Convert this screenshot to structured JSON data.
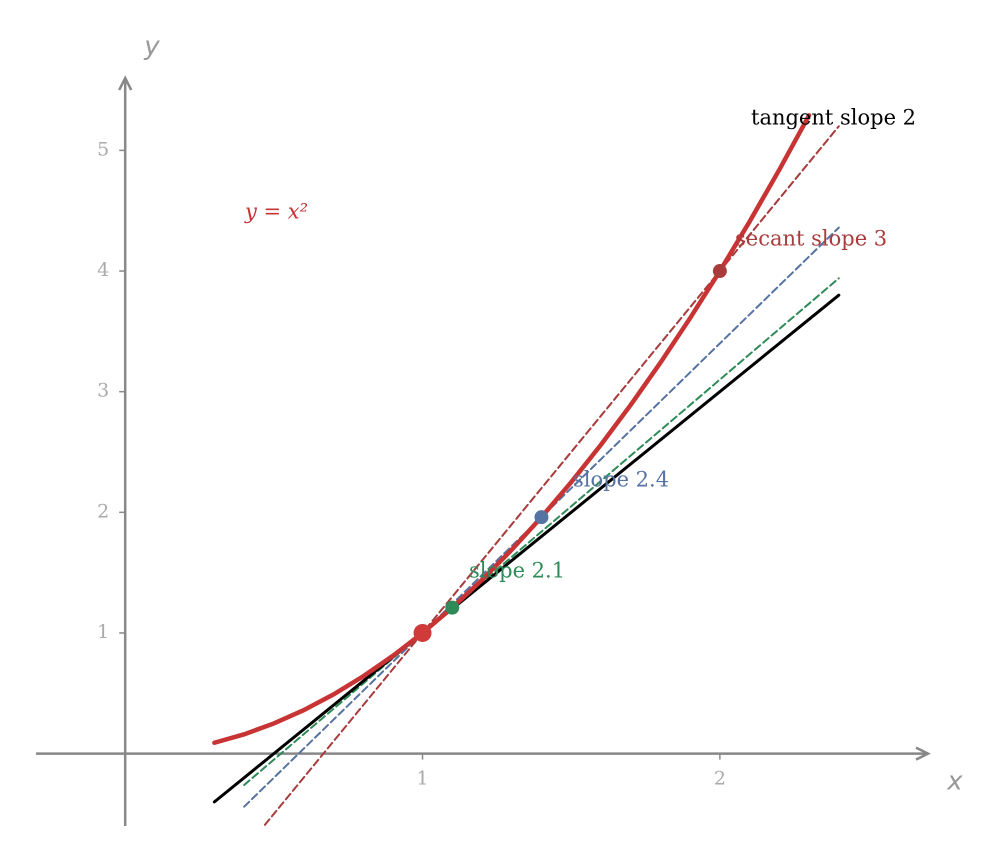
{
  "chart_data": {
    "type": "line",
    "x_label": "x",
    "y_label": "y",
    "xlim": [
      -0.3,
      2.7
    ],
    "ylim": [
      -0.6,
      5.6
    ],
    "xticks": [
      1,
      2
    ],
    "yticks": [
      1,
      2,
      3,
      4,
      5
    ],
    "series": [
      {
        "name": "y = x²",
        "color": "#c83434",
        "dashed": false,
        "x": [
          0.3,
          0.4,
          0.5,
          0.6,
          0.7,
          0.8,
          0.9,
          1,
          1.1,
          1.2,
          1.3,
          1.4,
          1.5,
          1.6,
          1.7,
          1.8,
          1.9,
          2,
          2.1,
          2.2,
          2.3
        ],
        "values": [
          0.09,
          0.16,
          0.25,
          0.36,
          0.49,
          0.64,
          0.81,
          1,
          1.21,
          1.44,
          1.69,
          1.96,
          2.25,
          2.56,
          2.89,
          3.24,
          3.61,
          4,
          4.41,
          4.84,
          5.29
        ]
      },
      {
        "name": "tangent slope 2",
        "color": "#000000",
        "dashed": false,
        "x": [
          0.3,
          2.4
        ],
        "values": [
          -0.4,
          3.8
        ]
      },
      {
        "name": "secant slope 3",
        "color": "#a83c3c",
        "dashed": true,
        "x": [
          0.47,
          2.4
        ],
        "values": [
          -0.59,
          5.2
        ]
      },
      {
        "name": "slope 2.4",
        "color": "#5573a3",
        "dashed": true,
        "x": [
          0.4,
          2.4
        ],
        "values": [
          -0.44,
          4.36
        ]
      },
      {
        "name": "slope 2.1",
        "color": "#2e8b57",
        "dashed": true,
        "x": [
          0.4,
          2.4
        ],
        "values": [
          -0.26,
          3.94
        ]
      }
    ],
    "points": {
      "x": [
        1,
        1.1,
        1.4,
        2
      ],
      "values": [
        1,
        1.21,
        1.96,
        4
      ],
      "colors": [
        "#d03a3a",
        "#2e8b57",
        "#5573a3",
        "#a83c3c"
      ]
    }
  }
}
